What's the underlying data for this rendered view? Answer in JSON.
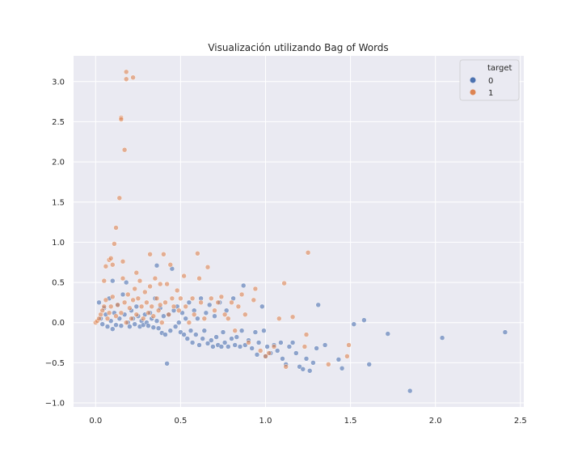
{
  "chart_data": {
    "type": "scatter",
    "title": "Visualización utilizando Bag of Words",
    "xlabel": "",
    "ylabel": "",
    "xlim": [
      -0.13,
      2.52
    ],
    "ylim": [
      -1.05,
      3.32
    ],
    "x_ticks": [
      "0.0",
      "0.5",
      "1.0",
      "1.5",
      "2.0",
      "2.5"
    ],
    "y_ticks": [
      "−1.0",
      "−0.5",
      "0.0",
      "0.5",
      "1.0",
      "1.5",
      "2.0",
      "2.5",
      "3.0"
    ],
    "grid": true,
    "legend": {
      "title": "target",
      "placement": "top-right",
      "entries": [
        "0",
        "1"
      ]
    },
    "colors": {
      "0": "#4c72b0",
      "1": "#dd8452",
      "background": "#eaeaf2",
      "grid": "#ffffff"
    },
    "series": [
      {
        "name": "0",
        "points": [
          [
            0.02,
            0.25
          ],
          [
            0.03,
            0.05
          ],
          [
            0.04,
            -0.02
          ],
          [
            0.05,
            0.18
          ],
          [
            0.06,
            0.1
          ],
          [
            0.07,
            -0.05
          ],
          [
            0.08,
            0.3
          ],
          [
            0.09,
            0.02
          ],
          [
            0.1,
            0.52
          ],
          [
            0.1,
            -0.08
          ],
          [
            0.11,
            0.12
          ],
          [
            0.12,
            -0.03
          ],
          [
            0.13,
            0.22
          ],
          [
            0.14,
            0.05
          ],
          [
            0.15,
            -0.04
          ],
          [
            0.16,
            0.35
          ],
          [
            0.17,
            0.1
          ],
          [
            0.18,
            0.5
          ],
          [
            0.19,
            0.0
          ],
          [
            0.2,
            -0.05
          ],
          [
            0.21,
            0.15
          ],
          [
            0.22,
            0.05
          ],
          [
            0.23,
            -0.02
          ],
          [
            0.24,
            0.2
          ],
          [
            0.25,
            0.08
          ],
          [
            0.26,
            -0.05
          ],
          [
            0.27,
            0.02
          ],
          [
            0.28,
            -0.03
          ],
          [
            0.29,
            0.1
          ],
          [
            0.3,
            0.0
          ],
          [
            0.31,
            -0.04
          ],
          [
            0.32,
            0.12
          ],
          [
            0.33,
            0.05
          ],
          [
            0.34,
            -0.06
          ],
          [
            0.35,
            0.3
          ],
          [
            0.36,
            0.02
          ],
          [
            0.37,
            -0.07
          ],
          [
            0.36,
            0.71
          ],
          [
            0.38,
            0.18
          ],
          [
            0.39,
            -0.13
          ],
          [
            0.4,
            0.08
          ],
          [
            0.41,
            -0.15
          ],
          [
            0.42,
            -0.51
          ],
          [
            0.43,
            0.1
          ],
          [
            0.44,
            -0.1
          ],
          [
            0.45,
            0.67
          ],
          [
            0.46,
            0.15
          ],
          [
            0.47,
            -0.05
          ],
          [
            0.48,
            0.2
          ],
          [
            0.49,
            0.0
          ],
          [
            0.5,
            -0.12
          ],
          [
            0.51,
            0.12
          ],
          [
            0.52,
            -0.15
          ],
          [
            0.53,
            0.05
          ],
          [
            0.54,
            -0.2
          ],
          [
            0.55,
            0.25
          ],
          [
            0.56,
            -0.1
          ],
          [
            0.57,
            -0.25
          ],
          [
            0.58,
            0.15
          ],
          [
            0.59,
            -0.15
          ],
          [
            0.6,
            0.05
          ],
          [
            0.61,
            -0.28
          ],
          [
            0.62,
            0.3
          ],
          [
            0.63,
            -0.2
          ],
          [
            0.64,
            -0.1
          ],
          [
            0.65,
            0.12
          ],
          [
            0.66,
            -0.26
          ],
          [
            0.67,
            0.22
          ],
          [
            0.68,
            -0.22
          ],
          [
            0.69,
            -0.3
          ],
          [
            0.7,
            0.08
          ],
          [
            0.71,
            -0.18
          ],
          [
            0.72,
            -0.28
          ],
          [
            0.73,
            0.25
          ],
          [
            0.74,
            -0.3
          ],
          [
            0.75,
            -0.12
          ],
          [
            0.76,
            -0.25
          ],
          [
            0.77,
            0.15
          ],
          [
            0.78,
            -0.3
          ],
          [
            0.8,
            -0.2
          ],
          [
            0.81,
            0.3
          ],
          [
            0.82,
            -0.28
          ],
          [
            0.83,
            -0.18
          ],
          [
            0.85,
            -0.3
          ],
          [
            0.86,
            -0.1
          ],
          [
            0.87,
            0.46
          ],
          [
            0.88,
            -0.28
          ],
          [
            0.9,
            -0.22
          ],
          [
            0.92,
            -0.32
          ],
          [
            0.94,
            -0.12
          ],
          [
            0.95,
            -0.4
          ],
          [
            0.96,
            -0.25
          ],
          [
            0.98,
            0.2
          ],
          [
            0.99,
            -0.1
          ],
          [
            1.0,
            -0.42
          ],
          [
            1.01,
            -0.3
          ],
          [
            1.03,
            -0.38
          ],
          [
            1.05,
            -0.28
          ],
          [
            1.07,
            -0.35
          ],
          [
            1.09,
            -0.25
          ],
          [
            1.1,
            -0.45
          ],
          [
            1.12,
            -0.52
          ],
          [
            1.14,
            -0.3
          ],
          [
            1.16,
            -0.25
          ],
          [
            1.18,
            -0.38
          ],
          [
            1.2,
            -0.55
          ],
          [
            1.22,
            -0.58
          ],
          [
            1.24,
            -0.45
          ],
          [
            1.26,
            -0.6
          ],
          [
            1.28,
            -0.5
          ],
          [
            1.3,
            -0.32
          ],
          [
            1.31,
            0.22
          ],
          [
            1.35,
            -0.28
          ],
          [
            1.43,
            -0.46
          ],
          [
            1.45,
            -0.57
          ],
          [
            1.52,
            -0.02
          ],
          [
            1.58,
            0.03
          ],
          [
            1.61,
            -0.52
          ],
          [
            1.72,
            -0.14
          ],
          [
            1.85,
            -0.85
          ],
          [
            2.04,
            -0.19
          ],
          [
            2.41,
            -0.12
          ]
        ]
      },
      {
        "name": "1",
        "points": [
          [
            0.0,
            0.0
          ],
          [
            0.01,
            0.02
          ],
          [
            0.02,
            0.05
          ],
          [
            0.03,
            0.1
          ],
          [
            0.04,
            0.15
          ],
          [
            0.05,
            0.2
          ],
          [
            0.05,
            0.52
          ],
          [
            0.06,
            0.28
          ],
          [
            0.06,
            0.7
          ],
          [
            0.07,
            0.05
          ],
          [
            0.08,
            0.12
          ],
          [
            0.08,
            0.78
          ],
          [
            0.09,
            0.2
          ],
          [
            0.09,
            0.8
          ],
          [
            0.1,
            0.32
          ],
          [
            0.1,
            0.72
          ],
          [
            0.11,
            0.98
          ],
          [
            0.12,
            0.08
          ],
          [
            0.12,
            1.18
          ],
          [
            0.13,
            0.22
          ],
          [
            0.14,
            1.55
          ],
          [
            0.15,
            0.12
          ],
          [
            0.15,
            2.55
          ],
          [
            0.15,
            2.53
          ],
          [
            0.16,
            0.55
          ],
          [
            0.16,
            0.76
          ],
          [
            0.17,
            2.15
          ],
          [
            0.17,
            0.25
          ],
          [
            0.18,
            0.0
          ],
          [
            0.18,
            3.12
          ],
          [
            0.18,
            3.03
          ],
          [
            0.19,
            0.35
          ],
          [
            0.2,
            0.18
          ],
          [
            0.21,
            0.05
          ],
          [
            0.22,
            0.28
          ],
          [
            0.22,
            3.05
          ],
          [
            0.23,
            0.42
          ],
          [
            0.24,
            0.1
          ],
          [
            0.24,
            0.62
          ],
          [
            0.25,
            0.3
          ],
          [
            0.26,
            0.52
          ],
          [
            0.27,
            0.2
          ],
          [
            0.28,
            0.05
          ],
          [
            0.29,
            0.38
          ],
          [
            0.3,
            0.25
          ],
          [
            0.31,
            0.12
          ],
          [
            0.32,
            0.45
          ],
          [
            0.32,
            0.85
          ],
          [
            0.33,
            0.2
          ],
          [
            0.34,
            0.08
          ],
          [
            0.35,
            0.55
          ],
          [
            0.36,
            0.3
          ],
          [
            0.37,
            0.15
          ],
          [
            0.38,
            0.48
          ],
          [
            0.38,
            0.22
          ],
          [
            0.39,
            0.0
          ],
          [
            0.4,
            0.85
          ],
          [
            0.41,
            0.25
          ],
          [
            0.42,
            0.48
          ],
          [
            0.43,
            0.1
          ],
          [
            0.44,
            0.72
          ],
          [
            0.45,
            0.3
          ],
          [
            0.46,
            0.2
          ],
          [
            0.48,
            0.4
          ],
          [
            0.49,
            0.15
          ],
          [
            0.5,
            0.3
          ],
          [
            0.52,
            0.58
          ],
          [
            0.53,
            0.2
          ],
          [
            0.55,
            0.0
          ],
          [
            0.57,
            0.3
          ],
          [
            0.58,
            0.1
          ],
          [
            0.6,
            0.86
          ],
          [
            0.61,
            0.55
          ],
          [
            0.62,
            0.25
          ],
          [
            0.64,
            0.05
          ],
          [
            0.66,
            0.69
          ],
          [
            0.68,
            0.3
          ],
          [
            0.7,
            0.15
          ],
          [
            0.72,
            0.25
          ],
          [
            0.74,
            0.32
          ],
          [
            0.76,
            0.1
          ],
          [
            0.78,
            0.05
          ],
          [
            0.8,
            0.25
          ],
          [
            0.82,
            -0.1
          ],
          [
            0.84,
            0.2
          ],
          [
            0.86,
            0.35
          ],
          [
            0.88,
            0.1
          ],
          [
            0.9,
            -0.25
          ],
          [
            0.93,
            0.28
          ],
          [
            0.94,
            0.42
          ],
          [
            0.97,
            -0.35
          ],
          [
            1.0,
            -0.42
          ],
          [
            1.02,
            -0.38
          ],
          [
            1.05,
            -0.3
          ],
          [
            1.08,
            0.05
          ],
          [
            1.11,
            0.49
          ],
          [
            1.12,
            -0.55
          ],
          [
            1.16,
            0.07
          ],
          [
            1.23,
            -0.3
          ],
          [
            1.24,
            -0.15
          ],
          [
            1.25,
            0.87
          ],
          [
            1.37,
            -0.52
          ],
          [
            1.48,
            -0.42
          ],
          [
            1.49,
            -0.28
          ]
        ]
      }
    ]
  }
}
